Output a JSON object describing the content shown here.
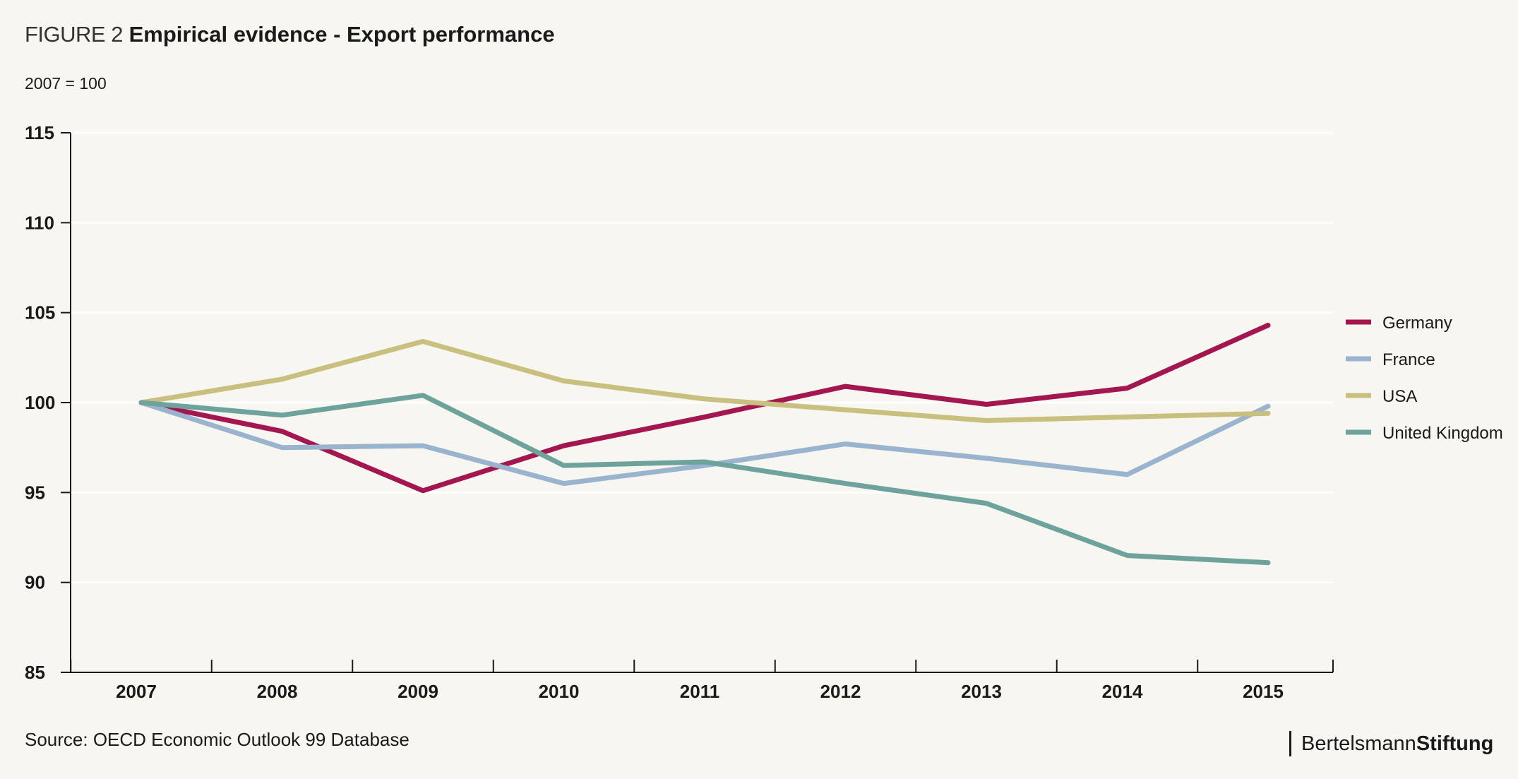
{
  "figure": {
    "prefix": "FIGURE 2",
    "title": "Empirical evidence - Export performance",
    "subtitle": "2007 = 100",
    "source": "Source: OECD Economic Outlook 99 Database"
  },
  "logo": {
    "part1": "Bertelsmann",
    "part2": "Stiftung"
  },
  "chart_data": {
    "type": "line",
    "title": "Empirical evidence - Export performance",
    "subtitle": "2007 = 100",
    "xlabel": "",
    "ylabel": "",
    "x": [
      "2007",
      "2008",
      "2009",
      "2010",
      "2011",
      "2012",
      "2013",
      "2014",
      "2015"
    ],
    "ylim": [
      85,
      115
    ],
    "yticks": [
      85,
      90,
      95,
      100,
      105,
      110,
      115
    ],
    "grid": true,
    "legend_position": "right",
    "series": [
      {
        "name": "Germany",
        "color": "#a3164f",
        "values": [
          100,
          98.4,
          95.1,
          97.6,
          99.2,
          100.9,
          99.9,
          100.8,
          104.3
        ]
      },
      {
        "name": "France",
        "color": "#9ab3cf",
        "values": [
          100,
          97.5,
          97.6,
          95.5,
          96.5,
          97.7,
          96.9,
          96.0,
          99.8
        ]
      },
      {
        "name": "USA",
        "color": "#c9c07f",
        "values": [
          100,
          101.3,
          103.4,
          101.2,
          100.2,
          99.6,
          99.0,
          99.2,
          99.4
        ]
      },
      {
        "name": "United Kingdom",
        "color": "#6ea39d",
        "values": [
          100,
          99.3,
          100.4,
          96.5,
          96.7,
          95.5,
          94.4,
          91.5,
          91.1
        ]
      }
    ]
  }
}
